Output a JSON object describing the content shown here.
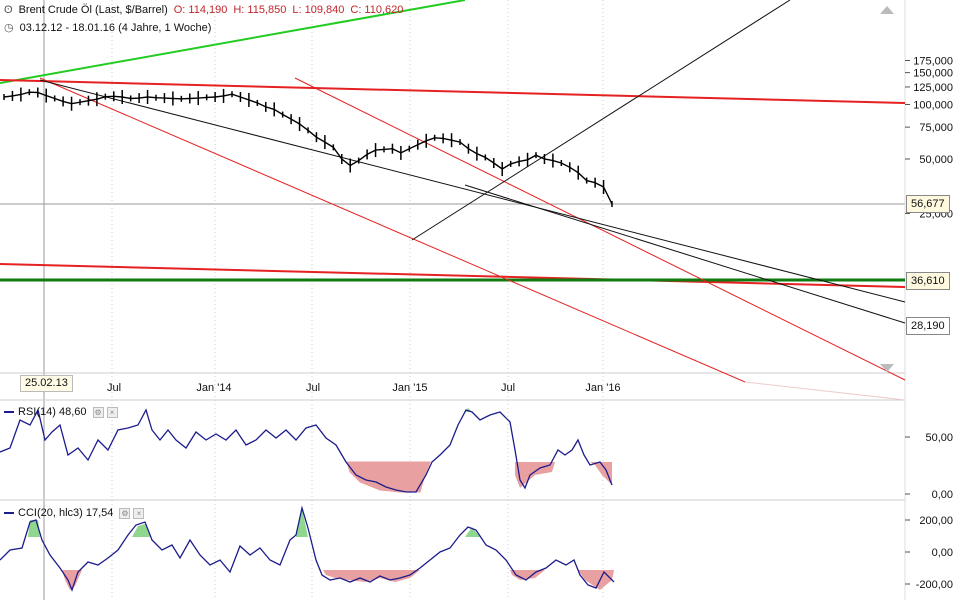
{
  "header": {
    "instrument": "Brent Crude Öl (Last, $/Barrel)",
    "open": "O: 114,190",
    "high": "H: 115,850",
    "low": "L: 109,840",
    "close": "C: 110,620",
    "range": "03.12.12 - 18.01.16 (4 Jahre, 1 Woche)"
  },
  "cursor_date": "25.02.13",
  "rsi": {
    "label": "RSI(14)",
    "value": "48,60",
    "ticks": [
      "50,00",
      "0,00"
    ]
  },
  "cci": {
    "label": "CCI(20, hlc3)",
    "value": "17,54",
    "ticks": [
      "200,00",
      "0,00",
      "-200,00"
    ]
  },
  "colors": {
    "up_trend": "#22cc22",
    "resistance": "#e52121",
    "support": "#0f7a0f",
    "indicator": "#1c1c8c",
    "fill_low": "#e9a0a0",
    "fill_high": "#8fd68f"
  },
  "chart_data": {
    "type": "line",
    "scale": "log",
    "ylim": [
      22000,
      180000
    ],
    "y_ticks": [
      "175,000",
      "150,000",
      "125,000",
      "100,000",
      "75,000",
      "50,000",
      "25,000"
    ],
    "x_ticks": [
      "Jul",
      "Jan '14",
      "Jul",
      "Jan '15",
      "Jul",
      "Jan '16"
    ],
    "price_labels": [
      "56,677",
      "36,610",
      "28,190"
    ],
    "series": [
      {
        "values": [
          110.0,
          111.5,
          113.5,
          117.0,
          116.5,
          112.0,
          108.0,
          104.0,
          101.0,
          103.0,
          105.0,
          107.0,
          110.5,
          111.0,
          110.0,
          108.0,
          108.5,
          110.0,
          109.0,
          108.5,
          108.0,
          107.5,
          108.0,
          108.5,
          109.5,
          110.0,
          111.5,
          114.0,
          110.0,
          106.0,
          102.0,
          97.0,
          94.0,
          88.0,
          83.0,
          78.0,
          72.0,
          66.0,
          62.0,
          58.0,
          50.0,
          46.0,
          49.0,
          53.0,
          56.0,
          56.5,
          57.0,
          54.0,
          57.0,
          60.0,
          63.0,
          65.5,
          65.0,
          63.5,
          62.0,
          57.0,
          53.5,
          51.0,
          47.5,
          44.0,
          47.0,
          48.5,
          49.5,
          52.5,
          50.0,
          49.0,
          47.5,
          45.0,
          42.0,
          38.0,
          37.0,
          35.0,
          28.2
        ]
      }
    ]
  }
}
